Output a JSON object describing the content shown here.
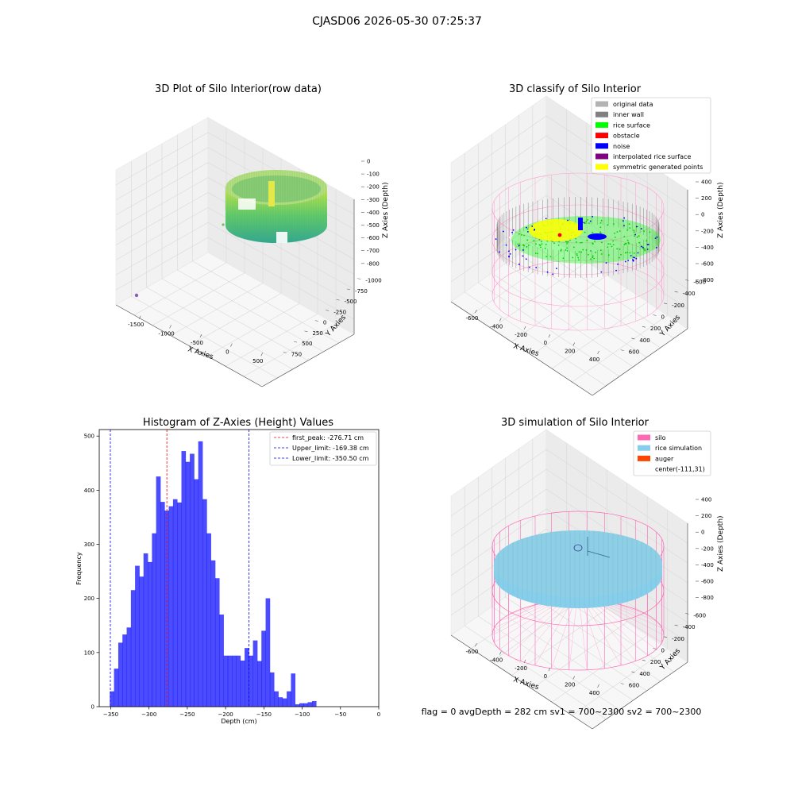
{
  "figure": {
    "suptitle": "CJASD06 2026-05-30 07:25:37",
    "status_line": "flag = 0     avgDepth = 282 cm  sv1 = 700~2300  sv2 = 700~2300"
  },
  "panels": {
    "raw3d": {
      "title": "3D Plot of Silo Interior(row data)",
      "xlabel": "X Axies",
      "ylabel": "Y Axies",
      "zlabel": "Z Axies (Depth)",
      "x_ticks": [
        "-1500",
        "-1000",
        "-500",
        "0",
        "500"
      ],
      "y_ticks": [
        "-1000",
        "-750",
        "-500",
        "-250",
        "0",
        "250",
        "500",
        "750"
      ],
      "z_ticks": [
        "0",
        "-100",
        "-200",
        "-300",
        "-400",
        "-500",
        "-600",
        "-700",
        "-800"
      ]
    },
    "classify3d": {
      "title": "3D classify of Silo Interior",
      "xlabel": "X Axies",
      "ylabel": "Y Axies",
      "zlabel": "Z Axies (Depth)",
      "x_ticks": [
        "-600",
        "-400",
        "-200",
        "0",
        "200",
        "400"
      ],
      "y_ticks": [
        "-600",
        "-400",
        "-200",
        "0",
        "200",
        "400",
        "600"
      ],
      "z_ticks": [
        "400",
        "200",
        "0",
        "-200",
        "-400",
        "-600",
        "-800"
      ],
      "legend": [
        {
          "label": "original data",
          "color": "#b3b3b3"
        },
        {
          "label": "inner wall",
          "color": "#808080"
        },
        {
          "label": "rice surface",
          "color": "#00ff00"
        },
        {
          "label": "obstacle",
          "color": "#ff0000"
        },
        {
          "label": "noise",
          "color": "#0000ff"
        },
        {
          "label": "interpolated rice surface",
          "color": "#800080"
        },
        {
          "label": "symmetric generated points",
          "color": "#ffff00"
        }
      ]
    },
    "simulation3d": {
      "title": "3D simulation of Silo Interior",
      "xlabel": "X Axies",
      "ylabel": "Y Axies",
      "zlabel": "Z Axies (Depth)",
      "x_ticks": [
        "-600",
        "-400",
        "-200",
        "0",
        "200",
        "400"
      ],
      "y_ticks": [
        "-600",
        "-400",
        "-200",
        "0",
        "200",
        "400",
        "600"
      ],
      "z_ticks": [
        "400",
        "200",
        "0",
        "-200",
        "-400",
        "-600",
        "-800"
      ],
      "legend": [
        {
          "label": "silo",
          "color": "#ff69b4"
        },
        {
          "label": "rice simulation",
          "color": "#87ceeb"
        },
        {
          "label": "auger",
          "color": "#ff4500"
        },
        {
          "label": "center(-111,31)",
          "color": ""
        }
      ]
    }
  },
  "chart_data": {
    "type": "bar",
    "title": "Histogram of Z-Axies (Height) Values",
    "xlabel": "Depth (cm)",
    "ylabel": "Frequency",
    "xlim": [
      -365,
      0
    ],
    "ylim": [
      0,
      512
    ],
    "x_ticks": [
      -350,
      -300,
      -250,
      -200,
      -150,
      -100,
      -50,
      0
    ],
    "y_ticks": [
      0,
      100,
      200,
      300,
      400,
      500
    ],
    "bin_start": -351,
    "bin_width": 5.5,
    "values": [
      28,
      70,
      118,
      133,
      146,
      215,
      260,
      240,
      283,
      267,
      320,
      425,
      378,
      362,
      370,
      383,
      377,
      472,
      452,
      467,
      420,
      490,
      383,
      320,
      270,
      237,
      170,
      94,
      94,
      94,
      94,
      85,
      108,
      94,
      122,
      84,
      140,
      200,
      63,
      28,
      17,
      15,
      28,
      61,
      4,
      6,
      6,
      8,
      10
    ],
    "bar_color": "#0000ff",
    "lines": [
      {
        "label": "first_peak: -276.71 cm",
        "x": -276.71,
        "color": "#ff0000"
      },
      {
        "label": "Upper_limit: -169.38 cm",
        "x": -169.38,
        "color": "#0000ff"
      },
      {
        "label": "Lower_limit: -350.50 cm",
        "x": -350.5,
        "color": "#0000ff"
      }
    ],
    "legend_position": "top-right"
  }
}
